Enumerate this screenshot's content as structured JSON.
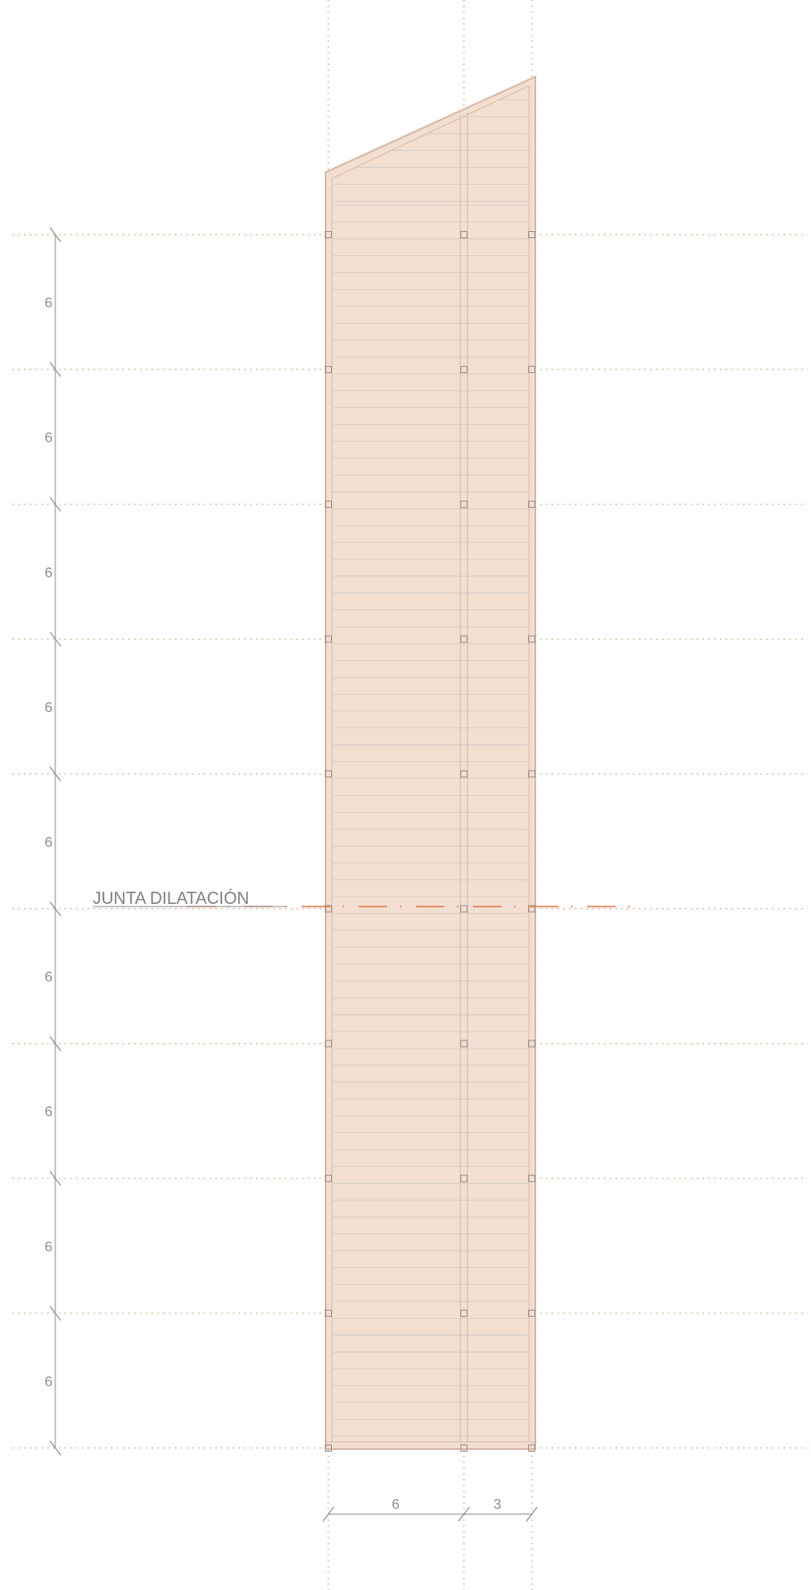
{
  "drawing": {
    "joint_label": "JUNTA DILATACIÓN",
    "vertical_dimensions": [
      "6",
      "6",
      "6",
      "6",
      "6",
      "6",
      "6",
      "6",
      "6"
    ],
    "horizontal_dimensions": [
      "6",
      "3"
    ],
    "colors": {
      "slab_fill": "#f2dfd1",
      "slab_stroke": "#d9b8a6",
      "axis_dots": "#e39a78",
      "joint_dash": "#e07a4a",
      "dimension_line": "#8f8f8f",
      "panel_line": "#cfc8c8",
      "column_mark": "#9a8f8a"
    }
  }
}
